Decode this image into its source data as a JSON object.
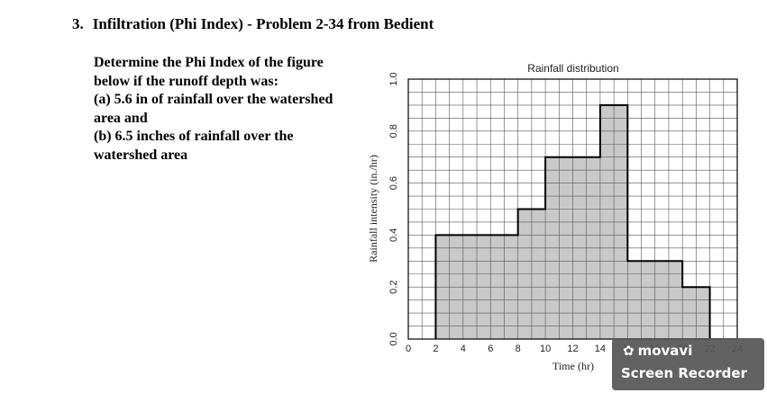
{
  "heading": {
    "number": "3.",
    "title": "Infiltration (Phi Index) - Problem 2-34 from Bedient"
  },
  "problem": {
    "intro": "Determine the Phi Index of the figure below if the runoff depth was:",
    "part_a": "(a) 5.6 in of rainfall over the watershed area and",
    "part_b": "(b) 6.5 inches of rainfall over the watershed area"
  },
  "chart_data": {
    "type": "bar",
    "title": "Rainfall distribution",
    "xlabel": "Time (hr)",
    "ylabel": "Rainfall intensity (in./hr)",
    "xlim": [
      0,
      24
    ],
    "ylim": [
      0,
      1.0
    ],
    "xticks": [
      0,
      2,
      4,
      6,
      8,
      10,
      12,
      14,
      16,
      18,
      20,
      22,
      24
    ],
    "yticks": [
      "0.0",
      "0.2",
      "0.4",
      "0.6",
      "0.8",
      "1.0"
    ],
    "grid": true,
    "steps": [
      {
        "start": 2,
        "end": 8,
        "value": 0.4
      },
      {
        "start": 8,
        "end": 10,
        "value": 0.5
      },
      {
        "start": 10,
        "end": 14,
        "value": 0.7
      },
      {
        "start": 14,
        "end": 16,
        "value": 0.9
      },
      {
        "start": 16,
        "end": 20,
        "value": 0.3
      },
      {
        "start": 20,
        "end": 22,
        "value": 0.2
      }
    ],
    "fill_color": "#c9c9c9"
  },
  "watermark": {
    "brand": "movavi",
    "subtitle": "Screen Recorder"
  }
}
